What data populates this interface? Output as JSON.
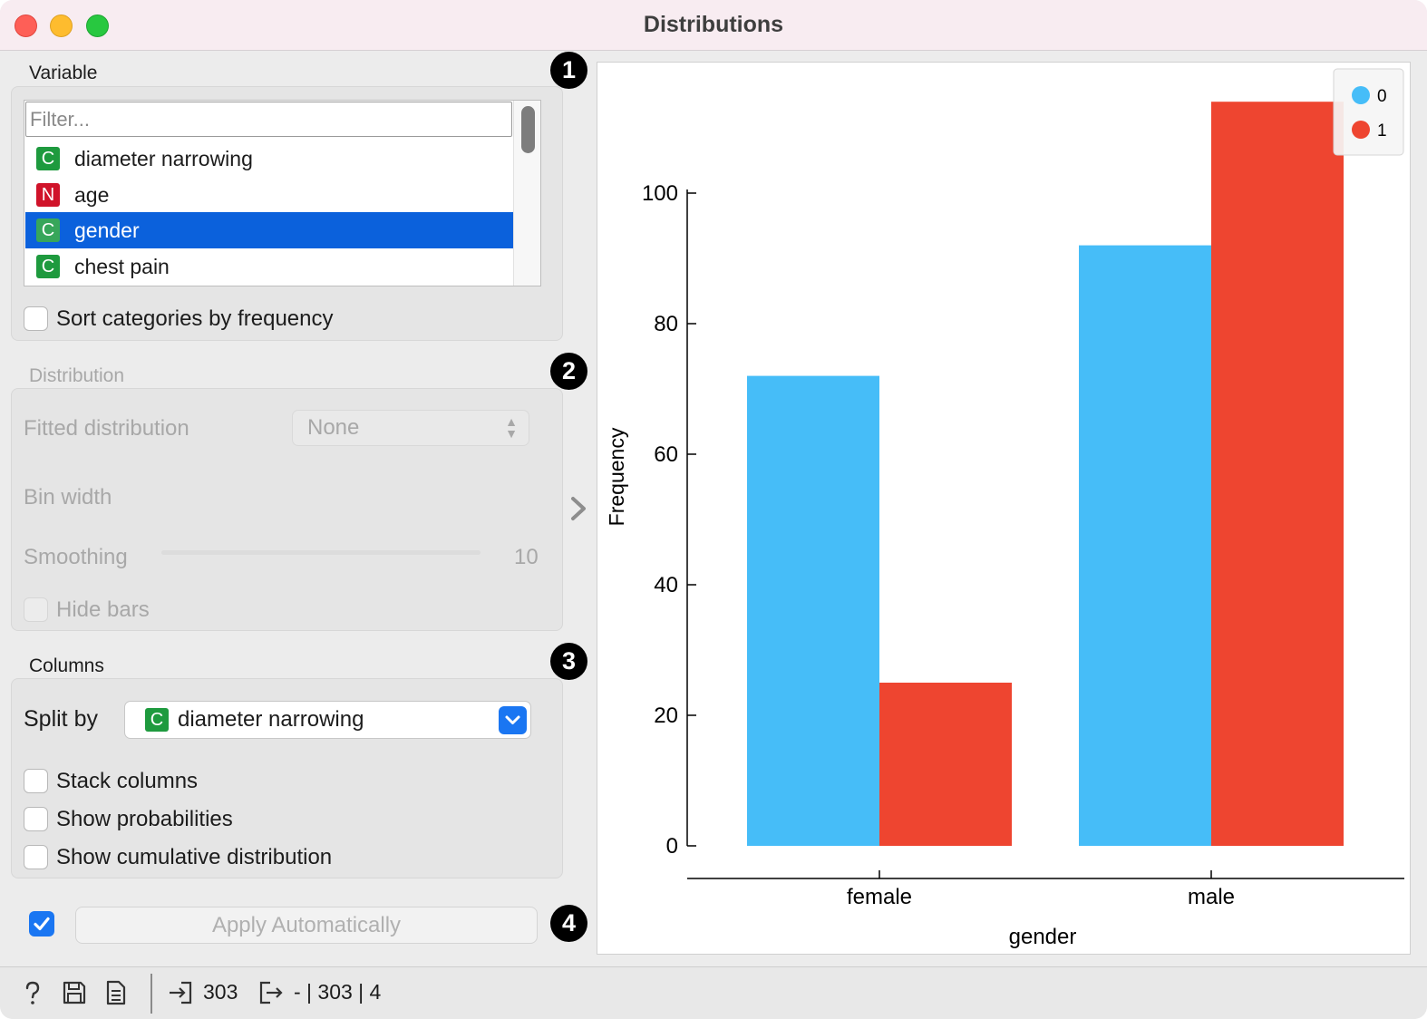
{
  "window": {
    "title": "Distributions"
  },
  "variable": {
    "label": "Variable",
    "badge": "1",
    "filter_placeholder": "Filter...",
    "items": [
      {
        "type": "C",
        "label": "diameter narrowing",
        "selected": false
      },
      {
        "type": "N",
        "label": "age",
        "selected": false
      },
      {
        "type": "C",
        "label": "gender",
        "selected": true
      },
      {
        "type": "C",
        "label": "chest pain",
        "selected": false
      }
    ],
    "sort_label": "Sort categories by frequency"
  },
  "distribution": {
    "label": "Distribution",
    "badge": "2",
    "fitted_label": "Fitted distribution",
    "fitted_value": "None",
    "bin_width_label": "Bin width",
    "smoothing_label": "Smoothing",
    "smoothing_value": "10",
    "hide_bars_label": "Hide bars"
  },
  "columns": {
    "label": "Columns",
    "badge": "3",
    "split_by_label": "Split by",
    "split_by_type": "C",
    "split_by_value": "diameter narrowing",
    "stack_label": "Stack columns",
    "probabilities_label": "Show probabilities",
    "cumulative_label": "Show cumulative distribution"
  },
  "apply": {
    "badge": "4",
    "label": "Apply Automatically",
    "checked": true
  },
  "status": {
    "input_count": "303",
    "output_summary": "- | 303 | 4"
  },
  "colors": {
    "accent": "#1a76f2",
    "series_0": "#46bdf8",
    "series_1": "#ee4530",
    "badge_c": "#1e9a3e",
    "badge_n": "#d0132a"
  },
  "chart_data": {
    "type": "bar",
    "categories": [
      "female",
      "male"
    ],
    "series": [
      {
        "name": "0",
        "values": [
          72,
          92
        ]
      },
      {
        "name": "1",
        "values": [
          25,
          114
        ]
      }
    ],
    "xlabel": "gender",
    "ylabel": "Frequency",
    "yticks": [
      0,
      20,
      40,
      60,
      80,
      100
    ],
    "legend_position": "top-right"
  }
}
